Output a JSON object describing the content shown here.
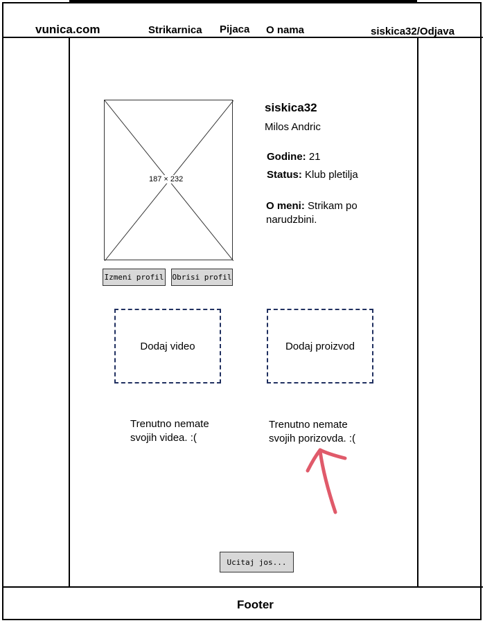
{
  "header": {
    "logo": "vunica.com",
    "nav": [
      "Strikarnica",
      "Pijaca",
      "O nama"
    ],
    "user_link": "siskica32/Odjava"
  },
  "profile": {
    "photo_label": "187 × 232",
    "username": "siskica32",
    "full_name": "Milos Andric",
    "age_label": "Godine:",
    "age_value": "21",
    "status_label": "Status:",
    "status_value": "Klub pletilja",
    "about_label": "O meni:",
    "about_value": "Strikam po narudzbini.",
    "edit_button": "Izmeni profil",
    "delete_button": "Obrisi profil"
  },
  "actions": {
    "add_video": "Dodaj video",
    "add_product": "Dodaj proizvod"
  },
  "empty_states": {
    "videos": "Trenutno nemate svojih videa. :(",
    "products": "Trenutno nemate svojih porizovda. :("
  },
  "load_more": "Ucitaj jos...",
  "footer": "Footer",
  "colors": {
    "annotation_arrow": "#e05a6a",
    "dashed_border": "#1f2f5f",
    "button_bg": "#d8d8d8"
  }
}
